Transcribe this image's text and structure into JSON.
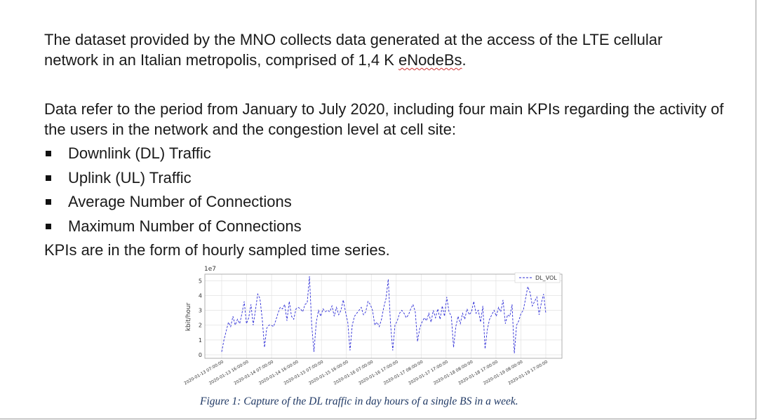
{
  "text": {
    "para1_before": "The dataset provided by the MNO collects data generated at the access of the LTE cellular network in an Italian metropolis, comprised of 1,4 K ",
    "para1_flagged": "eNodeBs",
    "para1_after": ".",
    "para2": "Data refer to the period from January to July 2020, including four main KPIs regarding the activity of the users in the network and the congestion level at cell site:",
    "bullets": [
      "Downlink (DL) Traffic",
      "Uplink (UL) Traffic",
      "Average Number of Connections",
      "Maximum Number of Connections"
    ],
    "para3": "KPIs are in the form of hourly sampled time series.",
    "caption": "Figure 1: Capture of the DL traffic in day hours of a single BS in a week."
  },
  "chart_data": {
    "type": "line",
    "scale_label": "1e7",
    "ylabel": "kbit/hour",
    "ylim": [
      0,
      5.3
    ],
    "yticks": [
      0,
      1,
      2,
      3,
      4,
      5
    ],
    "grid": true,
    "legend_position": "top-right",
    "line_style": "dashed",
    "color": "#2b2bd6",
    "xticks": [
      "2020-01-13 07:00:00",
      "2020-01-13 16:00:00",
      "2020-01-14 07:00:00",
      "2020-01-14 16:00:00",
      "2020-01-15 07:00:00",
      "2020-01-15 16:00:00",
      "2020-01-16 07:00:00",
      "2020-01-16 17:00:00",
      "2020-01-17 08:00:00",
      "2020-01-17 17:00:00",
      "2020-01-18 08:00:00",
      "2020-01-18 17:00:00",
      "2020-01-19 08:00:00",
      "2020-01-19 17:00:00"
    ],
    "series": [
      {
        "name": "DL_VOL",
        "values": [
          0.2,
          1.0,
          1.6,
          2.2,
          1.9,
          2.6,
          2.0,
          2.4,
          2.1,
          2.8,
          3.6,
          2.1,
          2.5,
          3.4,
          2.0,
          3.0,
          4.1,
          3.8,
          2.4,
          0.5,
          1.8,
          2.0,
          2.0,
          1.9,
          2.3,
          2.8,
          3.2,
          3.1,
          3.4,
          2.3,
          3.6,
          2.6,
          2.4,
          3.1,
          3.2,
          3.1,
          2.9,
          3.4,
          3.5,
          5.3,
          2.0,
          0.2,
          2.2,
          3.0,
          2.6,
          3.1,
          2.9,
          3.0,
          2.9,
          3.3,
          2.6,
          3.2,
          2.7,
          3.0,
          3.7,
          2.9,
          2.2,
          0.3,
          2.0,
          2.6,
          2.8,
          3.0,
          3.2,
          2.7,
          2.9,
          3.6,
          3.4,
          3.0,
          2.0,
          2.2,
          1.9,
          2.4,
          3.2,
          3.8,
          5.1,
          2.1,
          0.3,
          2.0,
          2.3,
          2.8,
          3.0,
          2.8,
          2.5,
          2.7,
          3.1,
          3.4,
          2.9,
          0.9,
          1.8,
          2.2,
          2.5,
          2.3,
          2.8,
          2.2,
          3.0,
          2.5,
          3.1,
          2.4,
          3.3,
          2.6,
          3.9,
          2.9,
          2.6,
          0.5,
          1.9,
          2.6,
          2.1,
          2.8,
          2.4,
          3.1,
          2.7,
          2.9,
          3.6,
          2.8,
          3.0,
          2.2,
          3.3,
          0.4,
          1.7,
          2.4,
          2.7,
          3.0,
          2.6,
          3.2,
          2.9,
          3.7,
          2.1,
          2.7,
          2.6,
          3.4,
          0.1,
          2.0,
          2.3,
          2.8,
          3.0,
          3.8,
          4.6,
          4.2,
          3.3,
          3.6,
          3.9,
          2.7,
          3.5,
          4.1,
          2.8
        ]
      }
    ]
  }
}
